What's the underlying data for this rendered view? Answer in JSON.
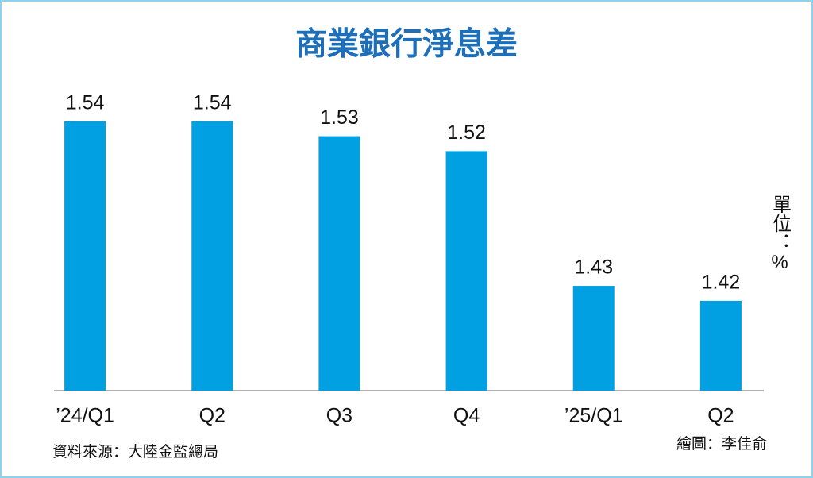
{
  "chart_data": {
    "type": "bar",
    "title": "商業銀行淨息差",
    "categories": [
      "’24/Q1",
      "Q2",
      "Q3",
      "Q4",
      "’25/Q1",
      "Q2"
    ],
    "values": [
      1.54,
      1.54,
      1.53,
      1.52,
      1.43,
      1.42
    ],
    "color": "#00a0e3",
    "ylim": [
      1.36,
      1.56
    ],
    "unit_label": "單位：%",
    "source": "資料來源：大陸金監總局",
    "credit": "繪圖：李佳俞"
  }
}
